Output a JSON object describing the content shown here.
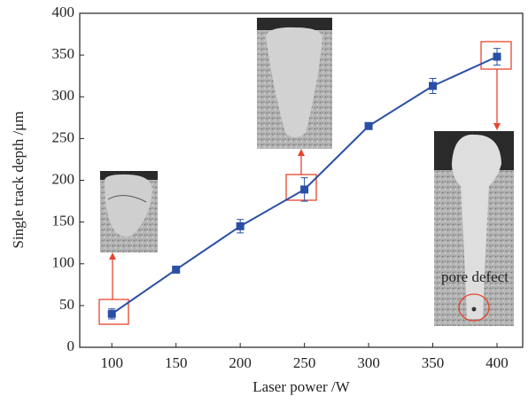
{
  "chart_data": {
    "type": "line",
    "x_label": "Laser power /W",
    "y_label": "Single track depth /μm",
    "x": [
      100,
      150,
      200,
      250,
      300,
      350,
      400
    ],
    "values": [
      40,
      93,
      145,
      189,
      265,
      313,
      348
    ],
    "errors": [
      6,
      3,
      8,
      14,
      3,
      9,
      10
    ],
    "color": "#2a4fa6",
    "xlim": [
      75,
      420
    ],
    "xticks": [
      100,
      150,
      200,
      250,
      300,
      350,
      400
    ],
    "ylim": [
      0,
      400
    ],
    "yticks": [
      0,
      50,
      100,
      150,
      200,
      250,
      300,
      350,
      400
    ],
    "annotation": "pore defect"
  }
}
